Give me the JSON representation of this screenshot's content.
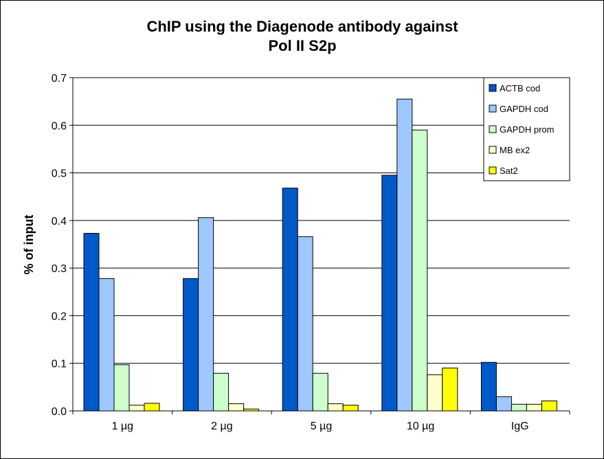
{
  "chart_data": {
    "type": "bar",
    "title_lines": [
      "ChIP using the Diagenode antibody against",
      "Pol II S2p"
    ],
    "ylabel": "% of input",
    "xlabel": "",
    "ylim": [
      0,
      0.7
    ],
    "yticks": [
      "0.0",
      "0.1",
      "0.2",
      "0.3",
      "0.4",
      "0.5",
      "0.6",
      "0.7"
    ],
    "y_tick_values": [
      0,
      0.1,
      0.2,
      0.3,
      0.4,
      0.5,
      0.6,
      0.7
    ],
    "grid": true,
    "legend_position": "top-right",
    "categories": [
      "1 µg",
      "2 µg",
      "5 µg",
      "10 µg",
      "IgG"
    ],
    "series": [
      {
        "name": "ACTB cod",
        "color": "#0059c8",
        "values": [
          0.373,
          0.278,
          0.468,
          0.495,
          0.102
        ]
      },
      {
        "name": "GAPDH cod",
        "color": "#9ec8ff",
        "values": [
          0.278,
          0.406,
          0.366,
          0.655,
          0.03
        ]
      },
      {
        "name": "GAPDH prom",
        "color": "#ccffcc",
        "values": [
          0.097,
          0.079,
          0.079,
          0.59,
          0.014
        ]
      },
      {
        "name": "MB ex2",
        "color": "#ffffcc",
        "values": [
          0.012,
          0.015,
          0.015,
          0.076,
          0.014
        ]
      },
      {
        "name": "Sat2",
        "color": "#ffff00",
        "values": [
          0.016,
          0.004,
          0.012,
          0.09,
          0.021
        ]
      }
    ]
  }
}
